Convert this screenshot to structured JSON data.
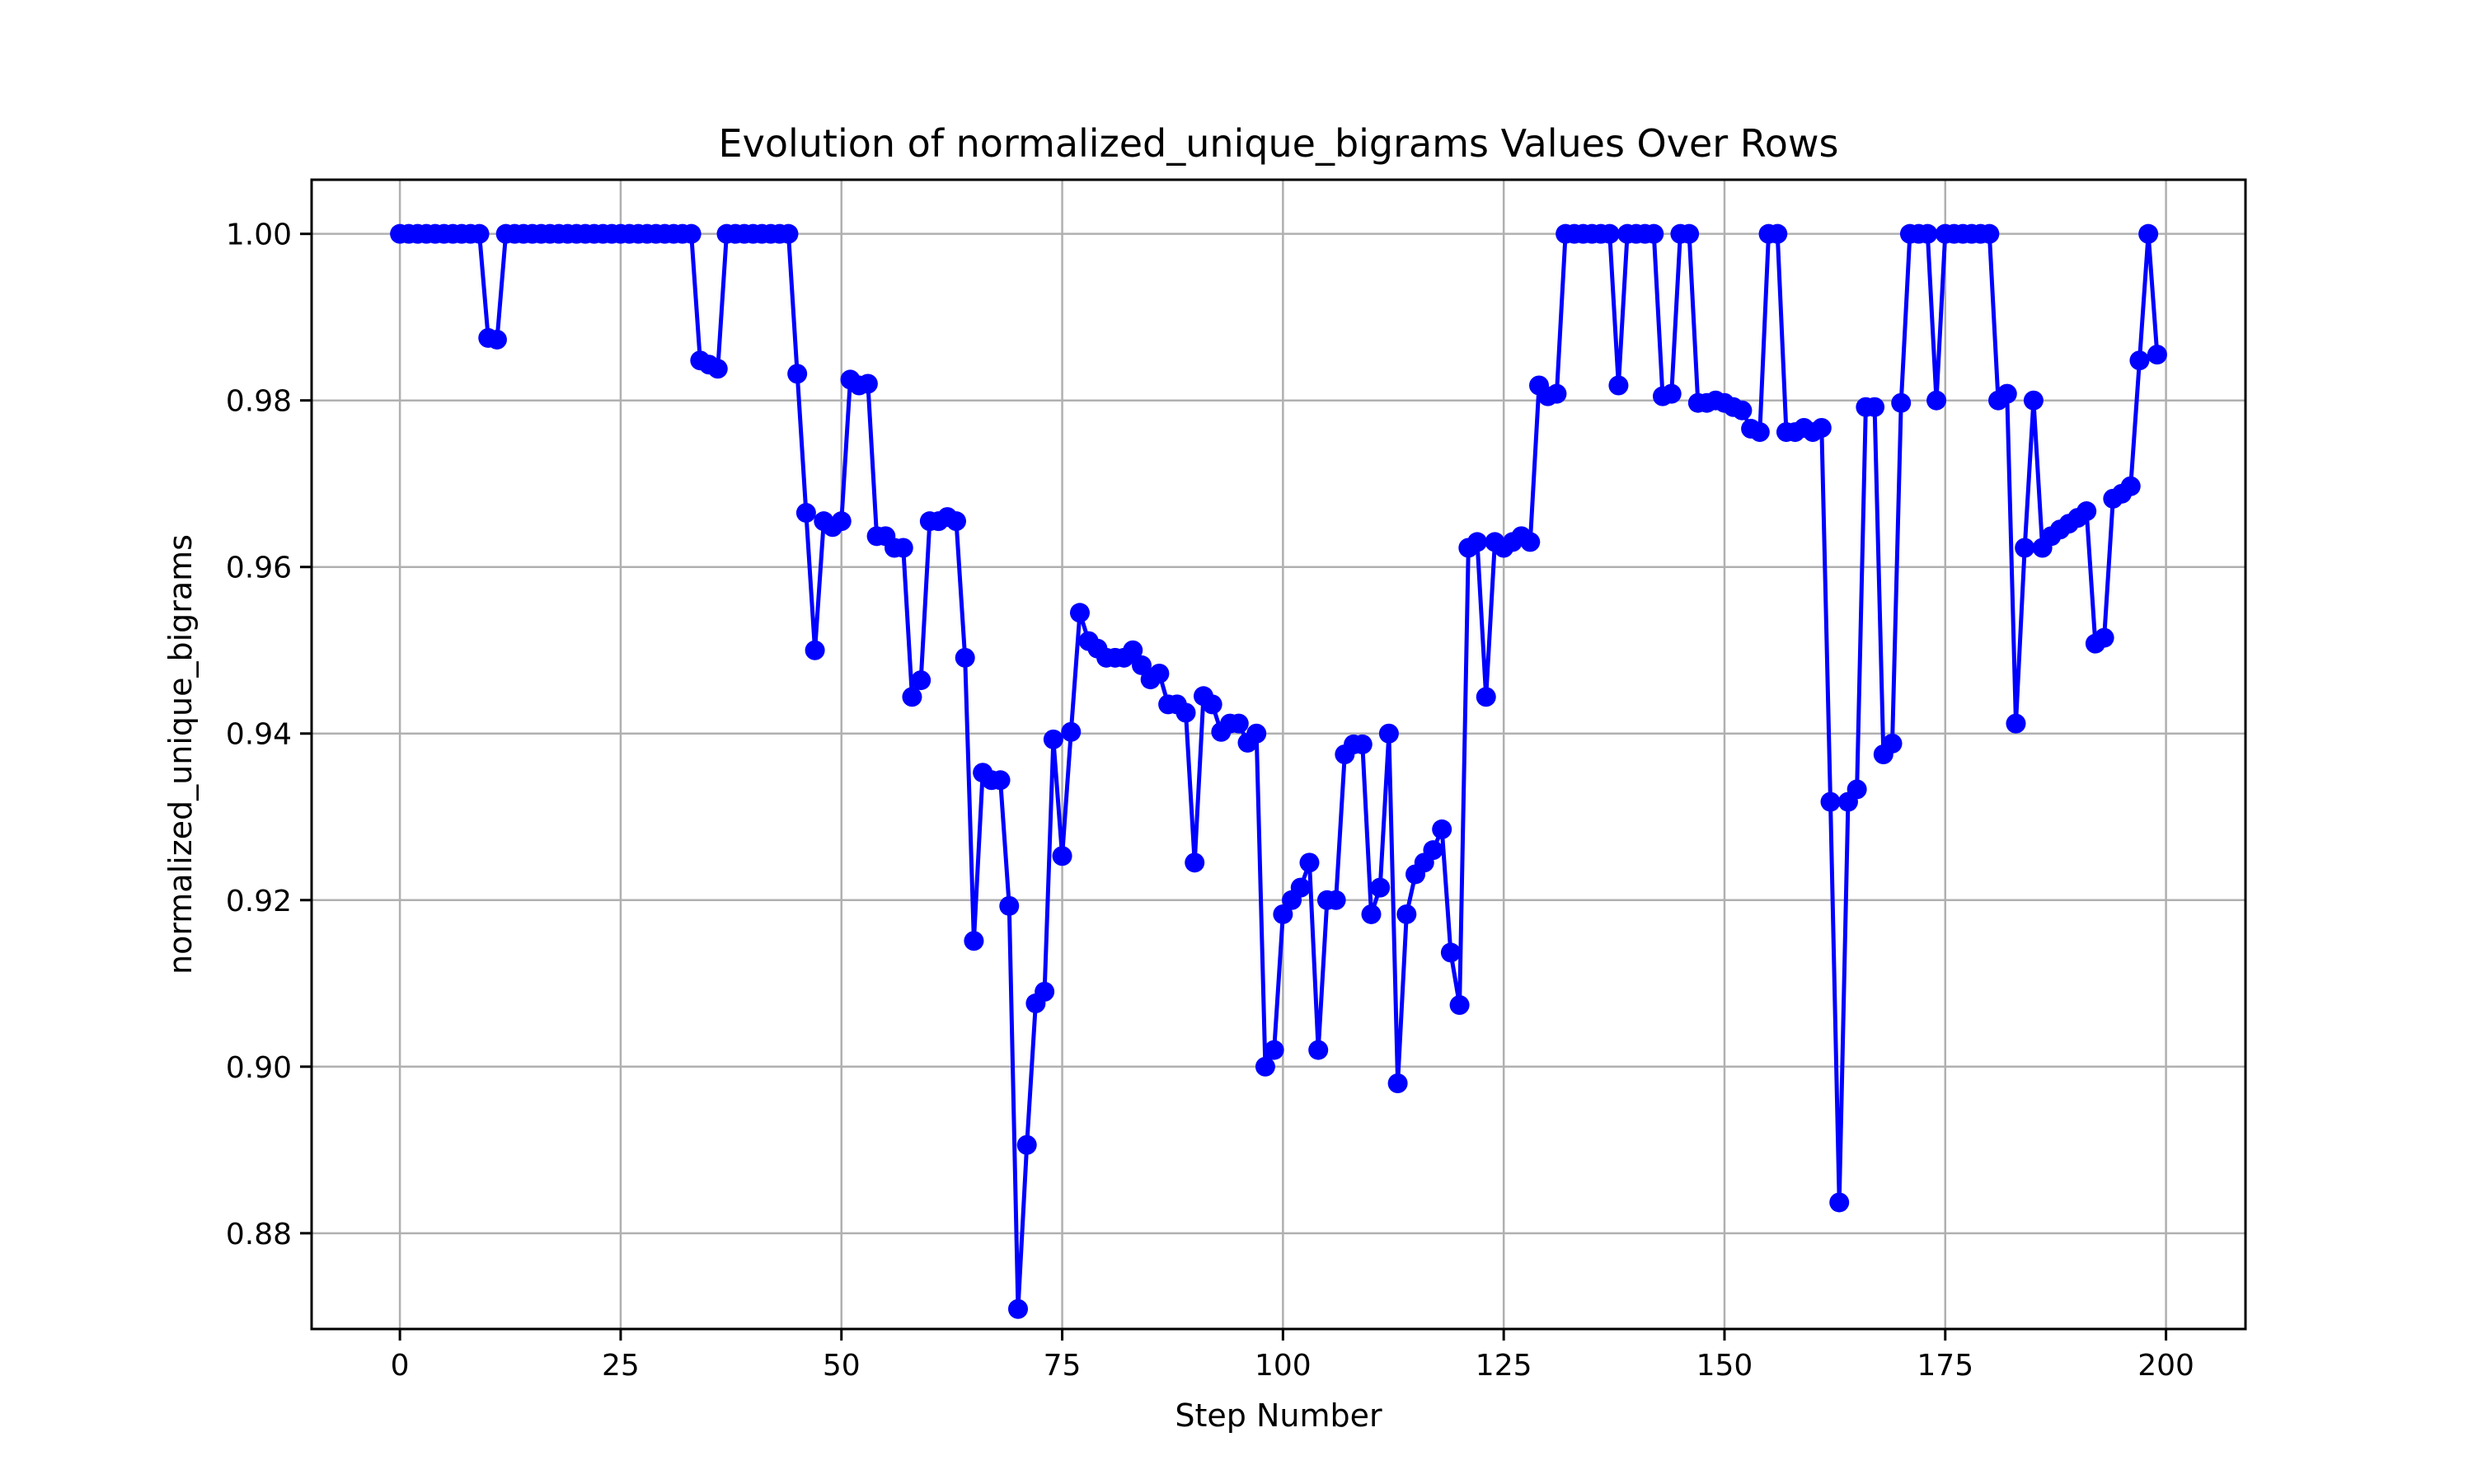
{
  "chart_data": {
    "type": "line",
    "title": "Evolution of normalized_unique_bigrams Values Over Rows",
    "xlabel": "Step Number",
    "ylabel": "normalized_unique_bigrams",
    "xlim": [
      -10,
      209
    ],
    "ylim": [
      0.8685,
      1.0065
    ],
    "xticks": [
      0,
      25,
      50,
      75,
      100,
      125,
      150,
      175,
      200
    ],
    "xtick_labels": [
      "0",
      "25",
      "50",
      "75",
      "100",
      "125",
      "150",
      "175",
      "200"
    ],
    "yticks": [
      0.88,
      0.9,
      0.92,
      0.94,
      0.96,
      0.98,
      1.0
    ],
    "ytick_labels": [
      "0.88",
      "0.90",
      "0.92",
      "0.94",
      "0.96",
      "0.98",
      "1.00"
    ],
    "grid": true,
    "legend": "none",
    "line_color": "#0000ff",
    "marker": "circle",
    "series": [
      {
        "x": [
          0,
          1,
          2,
          3,
          4,
          5,
          6,
          7,
          8,
          9,
          10,
          11,
          12,
          13,
          14,
          15,
          16,
          17,
          18,
          19,
          20,
          21,
          22,
          23,
          24,
          25,
          26,
          27,
          28,
          29,
          30,
          31,
          32,
          33,
          34,
          35,
          36,
          37,
          38,
          39,
          40,
          41,
          42,
          43,
          44,
          45,
          46,
          47,
          48,
          49,
          50,
          51,
          52,
          53,
          54,
          55,
          56,
          57,
          58,
          59,
          60,
          61,
          62,
          63,
          64,
          65,
          66,
          67,
          68,
          69,
          70,
          71,
          72,
          73,
          74,
          75,
          76,
          77,
          78,
          79,
          80,
          81,
          82,
          83,
          84,
          85,
          86,
          87,
          88,
          89,
          90,
          91,
          92,
          93,
          94,
          95,
          96,
          97,
          98,
          99,
          100,
          101,
          102,
          103,
          104,
          105,
          106,
          107,
          108,
          109,
          110,
          111,
          112,
          113,
          114,
          115,
          116,
          117,
          118,
          119,
          120,
          121,
          122,
          123,
          124,
          125,
          126,
          127,
          128,
          129,
          130,
          131,
          132,
          133,
          134,
          135,
          136,
          137,
          138,
          139,
          140,
          141,
          142,
          143,
          144,
          145,
          146,
          147,
          148,
          149,
          150,
          151,
          152,
          153,
          154,
          155,
          156,
          157,
          158,
          159,
          160,
          161,
          162,
          163,
          164,
          165,
          166,
          167,
          168,
          169,
          170,
          171,
          172,
          173,
          174,
          175,
          176,
          177,
          178,
          179,
          180,
          181,
          182,
          183,
          184,
          185,
          186,
          187,
          188,
          189,
          190,
          191,
          192,
          193,
          194,
          195,
          196,
          197,
          198,
          199
        ],
        "values": [
          1.0,
          1.0,
          1.0,
          1.0,
          1.0,
          1.0,
          1.0,
          1.0,
          1.0,
          1.0,
          0.9875,
          0.9873,
          1.0,
          1.0,
          1.0,
          1.0,
          1.0,
          1.0,
          1.0,
          1.0,
          1.0,
          1.0,
          1.0,
          1.0,
          1.0,
          1.0,
          1.0,
          1.0,
          1.0,
          1.0,
          1.0,
          1.0,
          1.0,
          1.0,
          0.9848,
          0.9843,
          0.9838,
          1.0,
          1.0,
          1.0,
          1.0,
          1.0,
          1.0,
          1.0,
          1.0,
          0.9832,
          0.9665,
          0.95,
          0.9655,
          0.9648,
          0.9655,
          0.9825,
          0.9818,
          0.982,
          0.9637,
          0.9637,
          0.9623,
          0.9623,
          0.9444,
          0.9464,
          0.9655,
          0.9655,
          0.966,
          0.9655,
          0.9491,
          0.9151,
          0.9353,
          0.9344,
          0.9344,
          0.9193,
          0.8709,
          0.8906,
          0.9076,
          0.909,
          0.9393,
          0.9253,
          0.9402,
          0.9545,
          0.9511,
          0.9502,
          0.9491,
          0.9491,
          0.9491,
          0.95,
          0.9482,
          0.9465,
          0.9472,
          0.9435,
          0.9435,
          0.9425,
          0.9245,
          0.9445,
          0.9435,
          0.9402,
          0.9412,
          0.9412,
          0.9389,
          0.94,
          0.9,
          0.902,
          0.9183,
          0.92,
          0.9215,
          0.9245,
          0.902,
          0.92,
          0.92,
          0.9375,
          0.9387,
          0.9387,
          0.9183,
          0.9215,
          0.94,
          0.898,
          0.9183,
          0.9231,
          0.9245,
          0.926,
          0.9285,
          0.9137,
          0.9074,
          0.9623,
          0.963,
          0.9444,
          0.963,
          0.9623,
          0.963,
          0.9637,
          0.963,
          0.9818,
          0.9805,
          0.9808,
          1.0,
          1.0,
          1.0,
          1.0,
          1.0,
          1.0,
          0.9818,
          1.0,
          1.0,
          1.0,
          1.0,
          0.9805,
          0.9808,
          1.0,
          1.0,
          0.9797,
          0.9797,
          0.98,
          0.9797,
          0.9792,
          0.9788,
          0.9766,
          0.9762,
          1.0,
          1.0,
          0.9762,
          0.9762,
          0.9767,
          0.9762,
          0.9767,
          0.9318,
          0.8837,
          0.9318,
          0.9333,
          0.9792,
          0.9792,
          0.9375,
          0.9388,
          0.9797,
          1.0,
          1.0,
          1.0,
          0.98,
          1.0,
          1.0,
          1.0,
          1.0,
          1.0,
          1.0,
          0.98,
          0.9808,
          0.9412,
          0.9623,
          0.98,
          0.9623,
          0.9637,
          0.9645,
          0.9652,
          0.9659,
          0.9667,
          0.9508,
          0.9515,
          0.9682,
          0.9688,
          0.9697,
          0.9848,
          1.0,
          0.9855
        ]
      }
    ]
  }
}
